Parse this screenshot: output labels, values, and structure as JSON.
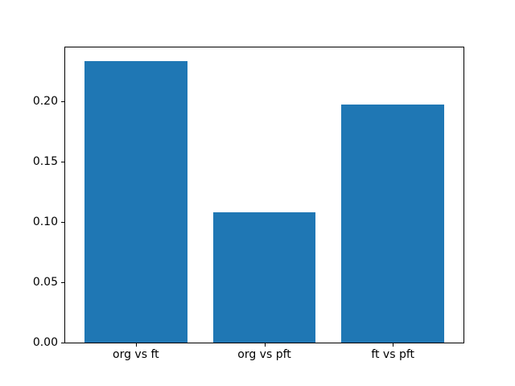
{
  "chart_data": {
    "type": "bar",
    "categories": [
      "org vs ft",
      "org vs pft",
      "ft vs pft"
    ],
    "values": [
      0.233,
      0.108,
      0.197
    ],
    "ytick_values": [
      0.0,
      0.05,
      0.1,
      0.15,
      0.2
    ],
    "ytick_labels": [
      "0.00",
      "0.05",
      "0.10",
      "0.15",
      "0.20"
    ],
    "ylim": [
      0,
      0.2444
    ],
    "xlim": [
      -0.55,
      2.55
    ],
    "bar_width_units": 0.8,
    "bar_color": "#1f77b4",
    "spine_color": "#000000",
    "text_color": "#000000",
    "background_color": "#ffffff",
    "grid": false,
    "legend": null,
    "title": "",
    "xlabel": "",
    "ylabel": ""
  }
}
